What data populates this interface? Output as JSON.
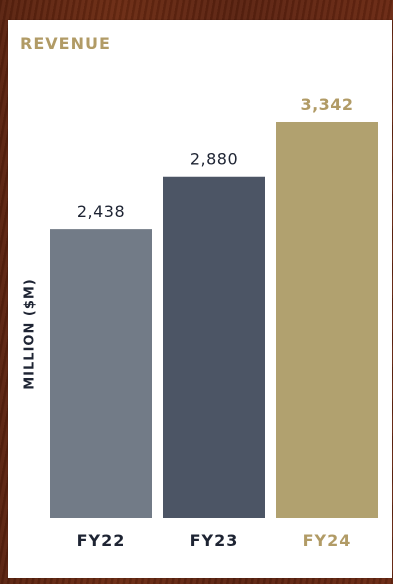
{
  "chart_data": {
    "type": "bar",
    "title": "REVENUE",
    "xlabel": "",
    "ylabel": "MILLION ($M)",
    "categories": [
      "FY22",
      "FY23",
      "FY24"
    ],
    "values": [
      2438,
      2880,
      3342
    ],
    "value_labels": [
      "2,438",
      "2,880",
      "3,342"
    ],
    "ylim": [
      0,
      3342
    ],
    "grid": false,
    "legend": "none",
    "highlight_index": 2,
    "colors": {
      "bars": [
        "#727b87",
        "#4c5565",
        "#b1a16f"
      ],
      "category_label": "#1e2433",
      "value_label": "#1e2433",
      "highlight": "#b19b66",
      "title": "#b19b66"
    }
  }
}
